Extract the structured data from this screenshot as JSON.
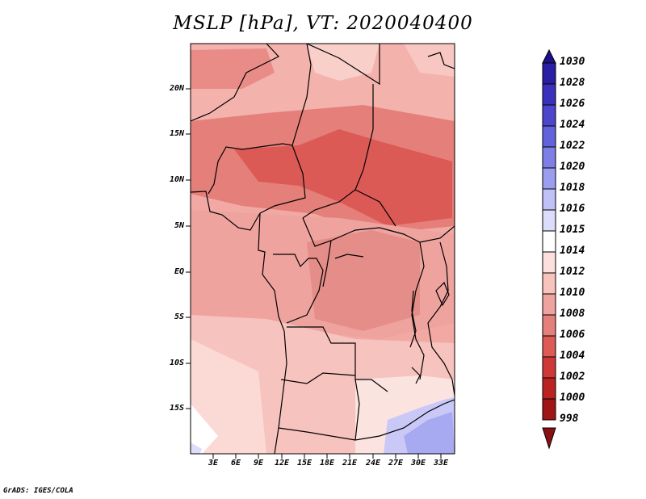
{
  "title": "MSLP [hPa], VT: 2020040400",
  "credit": "GrADS: IGES/COLA",
  "map": {
    "lat_labels": [
      "20N",
      "15N",
      "10N",
      "5N",
      "EQ",
      "5S",
      "10S",
      "15S"
    ],
    "lon_labels": [
      "3E",
      "6E",
      "9E",
      "12E",
      "15E",
      "18E",
      "21E",
      "24E",
      "27E",
      "30E",
      "33E"
    ]
  },
  "colorbar": {
    "levels": [
      "1030",
      "1028",
      "1026",
      "1024",
      "1022",
      "1020",
      "1018",
      "1016",
      "1015",
      "1014",
      "1012",
      "1010",
      "1008",
      "1006",
      "1004",
      "1002",
      "1000",
      "998"
    ],
    "colors": [
      "#1e0f8a",
      "#2a1ea5",
      "#3a30bb",
      "#4d46cc",
      "#6262db",
      "#7d7fe6",
      "#9b9ef0",
      "#bfc1f7",
      "#dcdcfb",
      "#ffffff",
      "#fde0dd",
      "#f8c2bd",
      "#eea39e",
      "#e57f7a",
      "#dd5a56",
      "#d03838",
      "#bb2323",
      "#a01616",
      "#881010"
    ]
  }
}
